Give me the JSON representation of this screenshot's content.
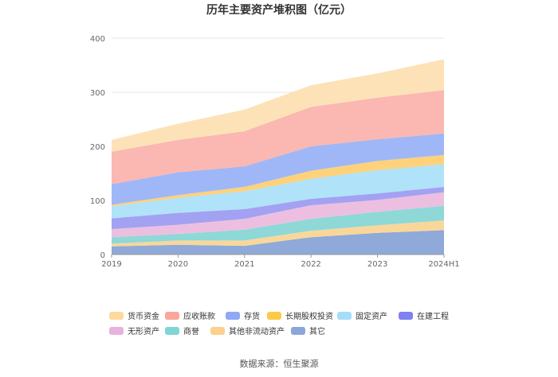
{
  "chart_data": {
    "type": "area",
    "stacked": true,
    "title": "历年主要资产堆积图（亿元）",
    "source": "数据来源：恒生聚源",
    "x": [
      "2019",
      "2020",
      "2021",
      "2022",
      "2023",
      "2024H1"
    ],
    "ylim": [
      0,
      400
    ],
    "yticks": [
      "0",
      "100",
      "200",
      "300",
      "400"
    ],
    "grid": true,
    "legend_position": "bottom",
    "series": [
      {
        "name": "其它",
        "color": "#8fa9d8",
        "values": [
          15,
          18,
          16,
          32,
          40,
          45
        ]
      },
      {
        "name": "其他非流动资产",
        "color": "#f9d79a",
        "values": [
          5,
          8,
          10,
          12,
          14,
          18
        ]
      },
      {
        "name": "商誉",
        "color": "#8ed8d8",
        "values": [
          12,
          12,
          20,
          22,
          25,
          27
        ]
      },
      {
        "name": "无形资产",
        "color": "#ecbfe0",
        "values": [
          15,
          17,
          20,
          25,
          22,
          25
        ]
      },
      {
        "name": "在建工程",
        "color": "#a3a1f2",
        "values": [
          20,
          22,
          18,
          12,
          12,
          10
        ]
      },
      {
        "name": "固定资产",
        "color": "#b0e2fa",
        "values": [
          22,
          28,
          33,
          37,
          43,
          42
        ]
      },
      {
        "name": "长期股权投资",
        "color": "#fdd27a",
        "values": [
          3,
          5,
          8,
          15,
          17,
          17
        ]
      },
      {
        "name": "存货",
        "color": "#9fb7f7",
        "values": [
          38,
          42,
          38,
          45,
          40,
          40
        ]
      },
      {
        "name": "应收账款",
        "color": "#fbb7b1",
        "values": [
          60,
          60,
          65,
          73,
          77,
          80
        ]
      },
      {
        "name": "货币资金",
        "color": "#fde2b8",
        "values": [
          22,
          30,
          40,
          40,
          45,
          57
        ]
      }
    ],
    "legend_order": [
      "货币资金",
      "应收账款",
      "存货",
      "长期股权投资",
      "固定资产",
      "在建工程",
      "无形资产",
      "商誉",
      "其他非流动资产",
      "其它"
    ],
    "legend_swatch_colors": {
      "货币资金": "#fdd99e",
      "应收账款": "#f9a79a",
      "存货": "#8ea8f5",
      "长期股权投资": "#fcc94a",
      "固定资产": "#a7dcf9",
      "在建工程": "#8080f0",
      "无形资产": "#e8b2dc",
      "商誉": "#7fd6d4",
      "其他非流动资产": "#fbd28c",
      "其它": "#8ba7d9"
    }
  }
}
